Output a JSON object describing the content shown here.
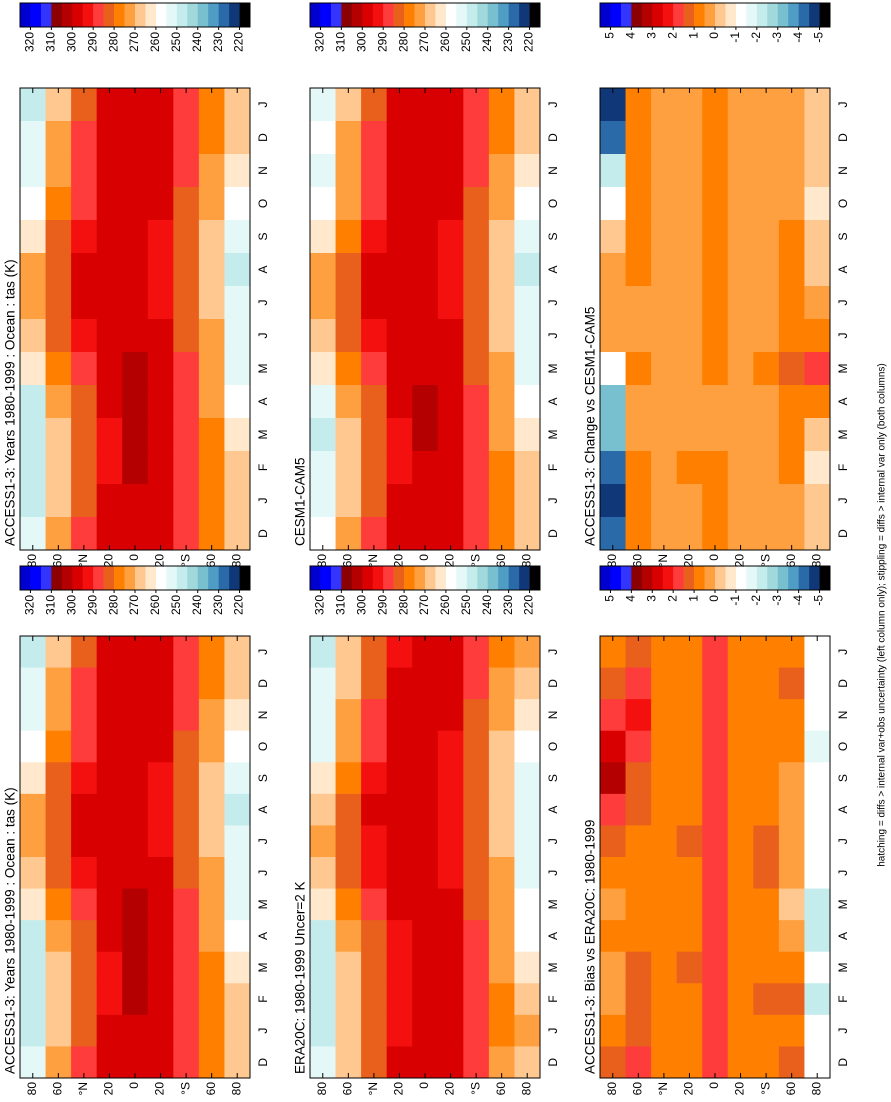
{
  "chart_data": [
    {
      "type": "heatmap",
      "title": "ACCESS1-3: Years 1980-1999 : Ocean : tas (K)",
      "categories": [
        "D",
        "J",
        "F",
        "M",
        "A",
        "M",
        "J",
        "J",
        "A",
        "S",
        "O",
        "N",
        "D",
        "J"
      ],
      "y": [
        80,
        60,
        40,
        20,
        0,
        -20,
        -40,
        -60,
        -80
      ],
      "ylim": [
        -90,
        90
      ],
      "yticks": [
        80,
        60,
        {
          "value": 40,
          "label": "°N"
        },
        20,
        0,
        {
          "value": -20,
          "label": "20"
        },
        {
          "value": -40,
          "label": "°S"
        },
        {
          "value": -60,
          "label": "60"
        },
        {
          "value": -80,
          "label": "80"
        }
      ],
      "values": [
        [
          255,
          250,
          247,
          246,
          250,
          262,
          270,
          273,
          271,
          265,
          257,
          253,
          255,
          250
        ],
        [
          272,
          270,
          269,
          269,
          272,
          277,
          282,
          285,
          285,
          281,
          276,
          273,
          272,
          270
        ],
        [
          286,
          284,
          283,
          283,
          285,
          289,
          293,
          296,
          297,
          294,
          290,
          288,
          286,
          284
        ],
        [
          297,
          296,
          295,
          295,
          296,
          298,
          299,
          300,
          300,
          300,
          299,
          298,
          297,
          296
        ],
        [
          300,
          300,
          301,
          301,
          301,
          301,
          300,
          300,
          300,
          300,
          300,
          300,
          300,
          300
        ],
        [
          298,
          299,
          299,
          299,
          298,
          297,
          296,
          295,
          295,
          295,
          296,
          297,
          298,
          299
        ],
        [
          288,
          289,
          290,
          289,
          288,
          286,
          284,
          283,
          282,
          283,
          284,
          286,
          288,
          289
        ],
        [
          276,
          277,
          277,
          276,
          274,
          272,
          271,
          270,
          270,
          270,
          271,
          273,
          276,
          277
        ],
        [
          268,
          270,
          268,
          264,
          258,
          255,
          253,
          251,
          250,
          251,
          256,
          263,
          268,
          270
        ]
      ],
      "colorbar_ticks": [
        320,
        310,
        300,
        290,
        280,
        270,
        260,
        250,
        240,
        230,
        220
      ]
    },
    {
      "type": "heatmap",
      "title": "ACCESS1-3: Years 1980-1999 : Ocean : tas (K)",
      "categories": [
        "D",
        "J",
        "F",
        "M",
        "A",
        "M",
        "J",
        "J",
        "A",
        "S",
        "O",
        "N",
        "D",
        "J"
      ],
      "y": [
        80,
        60,
        40,
        20,
        0,
        -20,
        -40,
        -60,
        -80
      ],
      "ylim": [
        -90,
        90
      ],
      "yticks": [
        80,
        60,
        {
          "value": 40,
          "label": "°N"
        },
        20,
        0,
        {
          "value": -20,
          "label": "20"
        },
        {
          "value": -40,
          "label": "°S"
        },
        {
          "value": -60,
          "label": "60"
        },
        {
          "value": -80,
          "label": "80"
        }
      ],
      "values": [
        [
          255,
          250,
          247,
          246,
          250,
          262,
          270,
          273,
          271,
          265,
          257,
          253,
          255,
          250
        ],
        [
          272,
          270,
          269,
          269,
          272,
          277,
          282,
          285,
          285,
          281,
          276,
          273,
          272,
          270
        ],
        [
          286,
          284,
          283,
          283,
          285,
          289,
          293,
          296,
          297,
          294,
          290,
          288,
          286,
          284
        ],
        [
          297,
          296,
          295,
          295,
          296,
          298,
          299,
          300,
          300,
          300,
          299,
          298,
          297,
          296
        ],
        [
          300,
          300,
          301,
          301,
          301,
          301,
          300,
          300,
          300,
          300,
          300,
          300,
          300,
          300
        ],
        [
          298,
          299,
          299,
          299,
          298,
          297,
          296,
          295,
          295,
          295,
          296,
          297,
          298,
          299
        ],
        [
          288,
          289,
          290,
          289,
          288,
          286,
          284,
          283,
          282,
          283,
          284,
          286,
          288,
          289
        ],
        [
          276,
          277,
          277,
          276,
          274,
          272,
          271,
          270,
          270,
          270,
          271,
          273,
          276,
          277
        ],
        [
          268,
          270,
          268,
          264,
          258,
          255,
          253,
          251,
          250,
          251,
          256,
          263,
          268,
          270
        ]
      ],
      "colorbar_ticks": [
        320,
        310,
        300,
        290,
        280,
        270,
        260,
        250,
        240,
        230,
        220
      ]
    },
    {
      "type": "heatmap",
      "title": "ERA20C: 1980-1999 Uncer=2 K",
      "categories": [
        "D",
        "J",
        "F",
        "M",
        "A",
        "M",
        "J",
        "J",
        "A",
        "S",
        "O",
        "N",
        "D",
        "J"
      ],
      "y": [
        80,
        60,
        40,
        20,
        0,
        -20,
        -40,
        -60,
        -80
      ],
      "ylim": [
        -90,
        90
      ],
      "yticks": [
        80,
        60,
        {
          "value": 40,
          "label": "°N"
        },
        20,
        0,
        {
          "value": -20,
          "label": "20"
        },
        {
          "value": -40,
          "label": "°S"
        },
        {
          "value": -60,
          "label": "60"
        },
        {
          "value": -80,
          "label": "80"
        }
      ],
      "values": [
        [
          254,
          249,
          247,
          246,
          249,
          262,
          269,
          272,
          269,
          262,
          254,
          251,
          254,
          249
        ],
        [
          270,
          269,
          268,
          268,
          271,
          276,
          281,
          284,
          284,
          280,
          274,
          271,
          270,
          269
        ],
        [
          285,
          283,
          282,
          282,
          284,
          288,
          292,
          295,
          296,
          293,
          289,
          287,
          285,
          283
        ],
        [
          296,
          295,
          294,
          294,
          295,
          297,
          298,
          299,
          299,
          299,
          298,
          297,
          296,
          295
        ],
        [
          298,
          298,
          299,
          299,
          299,
          299,
          298,
          298,
          298,
          298,
          298,
          298,
          298,
          298
        ],
        [
          297,
          298,
          298,
          298,
          297,
          296,
          295,
          294,
          294,
          294,
          295,
          296,
          297,
          298
        ],
        [
          287,
          288,
          289,
          288,
          287,
          285,
          283,
          282,
          281,
          282,
          283,
          285,
          287,
          288
        ],
        [
          275,
          276,
          276,
          275,
          274,
          272,
          271,
          270,
          270,
          270,
          270,
          272,
          275,
          276
        ],
        [
          269,
          271,
          270,
          265,
          260,
          257,
          254,
          252,
          251,
          252,
          257,
          264,
          269,
          271
        ]
      ],
      "colorbar_ticks": [
        320,
        310,
        300,
        290,
        280,
        270,
        260,
        250,
        240,
        230,
        220
      ]
    },
    {
      "type": "heatmap",
      "title": "CESM1-CAM5",
      "categories": [
        "D",
        "J",
        "F",
        "M",
        "A",
        "M",
        "J",
        "J",
        "A",
        "S",
        "O",
        "N",
        "D",
        "J"
      ],
      "y": [
        80,
        60,
        40,
        20,
        0,
        -20,
        -40,
        -60,
        -80
      ],
      "ylim": [
        -90,
        90
      ],
      "yticks": [
        80,
        60,
        {
          "value": 40,
          "label": "°N"
        },
        20,
        0,
        {
          "value": -20,
          "label": "20"
        },
        {
          "value": -40,
          "label": "°S"
        },
        {
          "value": -60,
          "label": "60"
        },
        {
          "value": -80,
          "label": "80"
        }
      ],
      "values": [
        [
          259,
          255,
          251,
          249,
          253,
          263,
          269.5,
          272.5,
          270.5,
          265,
          258,
          255,
          259,
          255
        ],
        [
          271,
          269,
          268,
          268.5,
          271.5,
          276,
          281.5,
          284.5,
          284,
          280,
          275,
          272,
          271,
          269
        ],
        [
          285.5,
          283.5,
          282.5,
          282.5,
          284.5,
          288.5,
          292.5,
          295.5,
          296.5,
          293.5,
          289.5,
          287.5,
          285.5,
          283.5
        ],
        [
          296.5,
          295.5,
          294,
          294.5,
          295.5,
          297.5,
          298.5,
          299.5,
          299.5,
          299.5,
          298.5,
          297.5,
          296.5,
          295.5
        ],
        [
          299,
          299,
          300,
          300.5,
          300.5,
          300,
          299,
          299,
          299,
          299,
          299,
          299,
          299,
          299
        ],
        [
          297.5,
          298.5,
          298.5,
          298.5,
          297.5,
          296.5,
          295.5,
          294.5,
          294.5,
          294.5,
          295.5,
          296.5,
          297.5,
          298.5
        ],
        [
          287.5,
          288.5,
          289.5,
          288.5,
          287.5,
          285,
          283.5,
          282.5,
          281.5,
          282.5,
          283.5,
          285.5,
          287.5,
          288.5
        ],
        [
          275.5,
          276.5,
          276,
          275,
          273,
          270.5,
          270,
          269,
          269,
          269,
          270.5,
          272.5,
          275.5,
          276.5
        ],
        [
          268,
          270,
          268.5,
          264,
          257,
          253,
          252,
          250.5,
          250,
          251,
          256.5,
          263,
          268,
          270
        ]
      ],
      "colorbar_ticks": [
        320,
        310,
        300,
        290,
        280,
        270,
        260,
        250,
        240,
        230,
        220
      ]
    },
    {
      "type": "heatmap",
      "title": "ACCESS1-3: Bias vs ERA20C: 1980-1999",
      "categories": [
        "D",
        "J",
        "F",
        "M",
        "A",
        "M",
        "J",
        "J",
        "A",
        "S",
        "O",
        "N",
        "D",
        "J"
      ],
      "y": [
        80,
        60,
        40,
        20,
        0,
        -20,
        -40,
        -60,
        -80
      ],
      "ylim": [
        -90,
        90
      ],
      "yticks": [
        80,
        60,
        {
          "value": 40,
          "label": "°N"
        },
        20,
        0,
        {
          "value": -20,
          "label": "20"
        },
        {
          "value": -40,
          "label": "°S"
        },
        {
          "value": -60,
          "label": "60"
        },
        {
          "value": -80,
          "label": "80"
        }
      ],
      "values": [
        [
          1.5,
          1,
          0.5,
          0.5,
          1,
          0.5,
          1,
          1.5,
          2,
          3.5,
          3,
          2,
          1.5,
          1
        ],
        [
          2,
          1.5,
          1.5,
          1.5,
          1,
          1,
          1,
          1,
          1.5,
          1.5,
          2,
          2.5,
          2,
          1.5
        ],
        [
          1,
          1,
          1,
          1,
          1,
          1,
          1,
          1,
          1,
          1,
          1,
          1,
          1,
          1
        ],
        [
          1,
          1,
          1,
          1.5,
          1,
          1,
          1,
          1.5,
          1,
          1,
          1,
          1,
          1,
          1
        ],
        [
          2,
          2,
          2,
          2,
          2,
          2,
          2,
          2,
          2,
          2,
          2,
          2,
          2,
          2
        ],
        [
          1,
          1,
          1,
          1,
          1,
          1,
          1,
          1,
          1,
          1,
          1,
          1,
          1,
          1
        ],
        [
          1,
          1,
          1.5,
          1,
          1,
          1,
          1.5,
          1.5,
          1,
          1,
          1,
          1,
          1,
          1
        ],
        [
          1.5,
          1,
          1.5,
          1,
          0.5,
          0,
          0.5,
          0.5,
          0.5,
          0.5,
          1,
          1,
          1.5,
          1
        ],
        [
          -1,
          -1,
          -2,
          -1,
          -2,
          -2,
          -1,
          -1,
          -1,
          -1,
          -1.5,
          -1,
          -1,
          -1
        ]
      ],
      "colorbar_ticks": [
        5,
        4,
        3,
        2,
        1,
        0,
        -1,
        -2,
        -3,
        -4,
        -5
      ]
    },
    {
      "type": "heatmap",
      "title": "ACCESS1-3: Change vs CESM1-CAM5",
      "categories": [
        "D",
        "J",
        "F",
        "M",
        "A",
        "M",
        "J",
        "J",
        "A",
        "S",
        "O",
        "N",
        "D",
        "J"
      ],
      "y": [
        80,
        60,
        40,
        20,
        0,
        -20,
        -40,
        -60,
        -80
      ],
      "ylim": [
        -90,
        90
      ],
      "yticks": [
        80,
        60,
        {
          "value": 40,
          "label": "°N"
        },
        20,
        0,
        {
          "value": -20,
          "label": "20"
        },
        {
          "value": -40,
          "label": "°S"
        },
        {
          "value": -60,
          "label": "60"
        },
        {
          "value": -80,
          "label": "80"
        }
      ],
      "values": [
        [
          -4,
          -5,
          -4,
          -3,
          -3,
          -1,
          0.5,
          0.5,
          0.5,
          0,
          -1,
          -2,
          -4,
          -5
        ],
        [
          1,
          1,
          1,
          0.5,
          0.5,
          1,
          0.5,
          0.5,
          1,
          1,
          1,
          1,
          1,
          1
        ],
        [
          0.5,
          0.5,
          0.5,
          0.5,
          0.5,
          0.5,
          0.5,
          0.5,
          0.5,
          0.5,
          0.5,
          0.5,
          0.5,
          0.5
        ],
        [
          0.5,
          0.5,
          1,
          0.5,
          0.5,
          0.5,
          0.5,
          0.5,
          0.5,
          0.5,
          0.5,
          0.5,
          0.5,
          0.5
        ],
        [
          1,
          1,
          1,
          0.5,
          0.5,
          1,
          1,
          1,
          1,
          1,
          1,
          1,
          1,
          1
        ],
        [
          0.5,
          0.5,
          0.5,
          0.5,
          0.5,
          0.5,
          0.5,
          0.5,
          0.5,
          0.5,
          0.5,
          0.5,
          0.5,
          0.5
        ],
        [
          0.5,
          0.5,
          0.5,
          0.5,
          0.5,
          1,
          0.5,
          0.5,
          0.5,
          0.5,
          0.5,
          0.5,
          0.5,
          0.5
        ],
        [
          0.5,
          0.5,
          1,
          1,
          1,
          1.5,
          1,
          1,
          1,
          1,
          0.5,
          0.5,
          0.5,
          0.5
        ],
        [
          0,
          0,
          -0.5,
          0,
          1,
          2,
          1,
          0.5,
          0,
          0,
          -0.5,
          0,
          0,
          0
        ]
      ],
      "colorbar_ticks": [
        5,
        4,
        3,
        2,
        1,
        0,
        -1,
        -2,
        -3,
        -4,
        -5
      ]
    }
  ],
  "colormap": [
    "#0000d0",
    "#0000ff",
    "#3434ff",
    "#8b0000",
    "#b40000",
    "#d80000",
    "#f51010",
    "#ff3c3c",
    "#e8601c",
    "#ff8000",
    "#ffa040",
    "#ffc890",
    "#ffe8cc",
    "#ffffff",
    "#e4f8f8",
    "#c4ecec",
    "#a0d8dc",
    "#78c0d0",
    "#4f9cc4",
    "#2a6aa8",
    "#103878",
    "#000000"
  ],
  "footnote": "hatching = diffs > internal var+obs uncertainty (left column only); stippling = diffs > internal var only (both columns)"
}
